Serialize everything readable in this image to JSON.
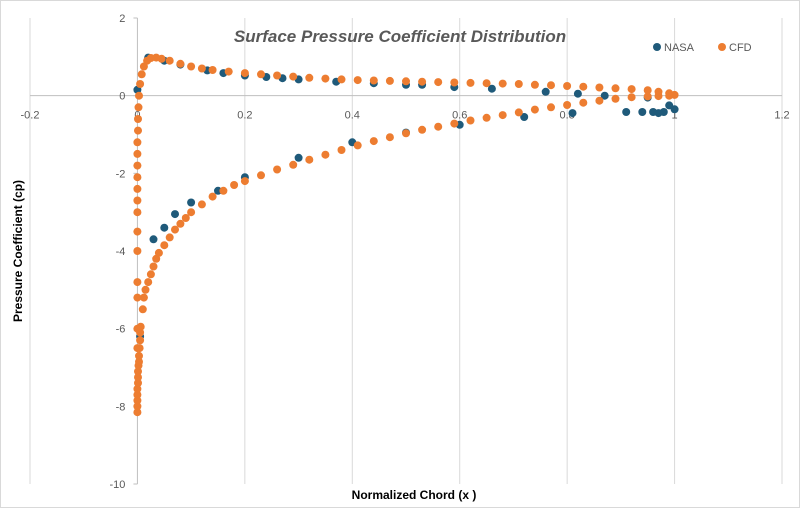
{
  "chart_data": {
    "type": "scatter",
    "title": "Surface Pressure Coefficient Distribution",
    "xlabel": "Normalized Chord (x )",
    "ylabel": "Pressure Coefficient (cp)",
    "xlim": [
      -0.2,
      1.2
    ],
    "ylim": [
      -10,
      2
    ],
    "x_ticks": [
      -0.2,
      0,
      0.2,
      0.4,
      0.6,
      0.8,
      1,
      1.2
    ],
    "y_ticks": [
      -10,
      -8,
      -6,
      -4,
      -2,
      0,
      2
    ],
    "grid": "vertical",
    "legend": {
      "position": "top-right"
    },
    "series": [
      {
        "name": "NASA",
        "color": "#1f5a7a",
        "points": [
          [
            0.0,
            0.15
          ],
          [
            0.02,
            0.98
          ],
          [
            0.05,
            0.9
          ],
          [
            0.08,
            0.8
          ],
          [
            0.13,
            0.65
          ],
          [
            0.16,
            0.58
          ],
          [
            0.2,
            0.52
          ],
          [
            0.24,
            0.48
          ],
          [
            0.27,
            0.45
          ],
          [
            0.3,
            0.42
          ],
          [
            0.37,
            0.36
          ],
          [
            0.44,
            0.32
          ],
          [
            0.5,
            0.28
          ],
          [
            0.53,
            0.28
          ],
          [
            0.59,
            0.22
          ],
          [
            0.66,
            0.18
          ],
          [
            0.76,
            0.1
          ],
          [
            0.82,
            0.05
          ],
          [
            0.87,
            0.0
          ],
          [
            0.95,
            -0.05
          ],
          [
            0.99,
            -0.25
          ],
          [
            1.0,
            -0.35
          ],
          [
            0.98,
            -0.42
          ],
          [
            0.97,
            -0.45
          ],
          [
            0.96,
            -0.42
          ],
          [
            0.94,
            -0.42
          ],
          [
            0.91,
            -0.42
          ],
          [
            0.81,
            -0.45
          ],
          [
            0.72,
            -0.55
          ],
          [
            0.6,
            -0.75
          ],
          [
            0.5,
            -0.95
          ],
          [
            0.4,
            -1.2
          ],
          [
            0.3,
            -1.6
          ],
          [
            0.2,
            -2.1
          ],
          [
            0.15,
            -2.45
          ],
          [
            0.1,
            -2.75
          ],
          [
            0.07,
            -3.05
          ],
          [
            0.05,
            -3.4
          ],
          [
            0.03,
            -3.7
          ],
          [
            0.005,
            -6.2
          ]
        ]
      },
      {
        "name": "CFD",
        "color": "#ed7d31",
        "points": [
          [
            0.0,
            -8.15
          ],
          [
            0.0,
            -8.0
          ],
          [
            0.0,
            -7.85
          ],
          [
            0.0,
            -7.7
          ],
          [
            0.0,
            -7.55
          ],
          [
            0.001,
            -7.4
          ],
          [
            0.001,
            -7.25
          ],
          [
            0.001,
            -7.1
          ],
          [
            0.002,
            -6.95
          ],
          [
            0.003,
            -6.85
          ],
          [
            0.003,
            -6.7
          ],
          [
            0.004,
            -6.5
          ],
          [
            0.005,
            -6.3
          ],
          [
            0.005,
            -6.1
          ],
          [
            0.006,
            -5.95
          ],
          [
            0.01,
            -5.5
          ],
          [
            0.012,
            -5.2
          ],
          [
            0.015,
            -5.0
          ],
          [
            0.02,
            -4.8
          ],
          [
            0.025,
            -4.6
          ],
          [
            0.03,
            -4.4
          ],
          [
            0.035,
            -4.2
          ],
          [
            0.04,
            -4.05
          ],
          [
            0.05,
            -3.85
          ],
          [
            0.06,
            -3.65
          ],
          [
            0.07,
            -3.45
          ],
          [
            0.08,
            -3.3
          ],
          [
            0.09,
            -3.15
          ],
          [
            0.1,
            -3.0
          ],
          [
            0.12,
            -2.8
          ],
          [
            0.14,
            -2.6
          ],
          [
            0.16,
            -2.45
          ],
          [
            0.18,
            -2.3
          ],
          [
            0.2,
            -2.2
          ],
          [
            0.23,
            -2.05
          ],
          [
            0.26,
            -1.9
          ],
          [
            0.29,
            -1.78
          ],
          [
            0.32,
            -1.65
          ],
          [
            0.35,
            -1.52
          ],
          [
            0.38,
            -1.4
          ],
          [
            0.41,
            -1.28
          ],
          [
            0.44,
            -1.17
          ],
          [
            0.47,
            -1.07
          ],
          [
            0.5,
            -0.97
          ],
          [
            0.53,
            -0.88
          ],
          [
            0.56,
            -0.8
          ],
          [
            0.59,
            -0.72
          ],
          [
            0.62,
            -0.64
          ],
          [
            0.65,
            -0.57
          ],
          [
            0.68,
            -0.5
          ],
          [
            0.71,
            -0.43
          ],
          [
            0.74,
            -0.36
          ],
          [
            0.77,
            -0.3
          ],
          [
            0.8,
            -0.24
          ],
          [
            0.83,
            -0.18
          ],
          [
            0.86,
            -0.13
          ],
          [
            0.89,
            -0.08
          ],
          [
            0.92,
            -0.04
          ],
          [
            0.95,
            -0.02
          ],
          [
            0.97,
            -0.01
          ],
          [
            0.99,
            0.0
          ],
          [
            1.0,
            0.02
          ],
          [
            0.99,
            0.06
          ],
          [
            0.97,
            0.1
          ],
          [
            0.95,
            0.14
          ],
          [
            0.92,
            0.17
          ],
          [
            0.89,
            0.19
          ],
          [
            0.86,
            0.21
          ],
          [
            0.83,
            0.23
          ],
          [
            0.8,
            0.25
          ],
          [
            0.77,
            0.27
          ],
          [
            0.74,
            0.28
          ],
          [
            0.71,
            0.3
          ],
          [
            0.68,
            0.31
          ],
          [
            0.65,
            0.32
          ],
          [
            0.62,
            0.33
          ],
          [
            0.59,
            0.34
          ],
          [
            0.56,
            0.35
          ],
          [
            0.53,
            0.36
          ],
          [
            0.5,
            0.37
          ],
          [
            0.47,
            0.38
          ],
          [
            0.44,
            0.39
          ],
          [
            0.41,
            0.4
          ],
          [
            0.38,
            0.42
          ],
          [
            0.35,
            0.44
          ],
          [
            0.32,
            0.46
          ],
          [
            0.29,
            0.49
          ],
          [
            0.26,
            0.52
          ],
          [
            0.23,
            0.55
          ],
          [
            0.2,
            0.58
          ],
          [
            0.17,
            0.62
          ],
          [
            0.14,
            0.66
          ],
          [
            0.12,
            0.7
          ],
          [
            0.1,
            0.75
          ],
          [
            0.08,
            0.82
          ],
          [
            0.06,
            0.9
          ],
          [
            0.045,
            0.95
          ],
          [
            0.035,
            0.98
          ],
          [
            0.025,
            0.97
          ],
          [
            0.018,
            0.9
          ],
          [
            0.012,
            0.75
          ],
          [
            0.008,
            0.55
          ],
          [
            0.005,
            0.3
          ],
          [
            0.003,
            0.0
          ],
          [
            0.002,
            -0.3
          ],
          [
            0.001,
            -0.6
          ],
          [
            0.001,
            -0.9
          ],
          [
            0.0,
            -1.2
          ],
          [
            0.0,
            -1.5
          ],
          [
            0.0,
            -1.8
          ],
          [
            0.0,
            -2.1
          ],
          [
            0.0,
            -2.4
          ],
          [
            0.0,
            -2.7
          ],
          [
            0.0,
            -3.0
          ],
          [
            0.0,
            -3.5
          ],
          [
            0.0,
            -4.0
          ],
          [
            0.0,
            -4.8
          ],
          [
            0.0,
            -5.2
          ],
          [
            0.0,
            -6.0
          ],
          [
            0.0,
            -6.5
          ]
        ]
      }
    ]
  }
}
